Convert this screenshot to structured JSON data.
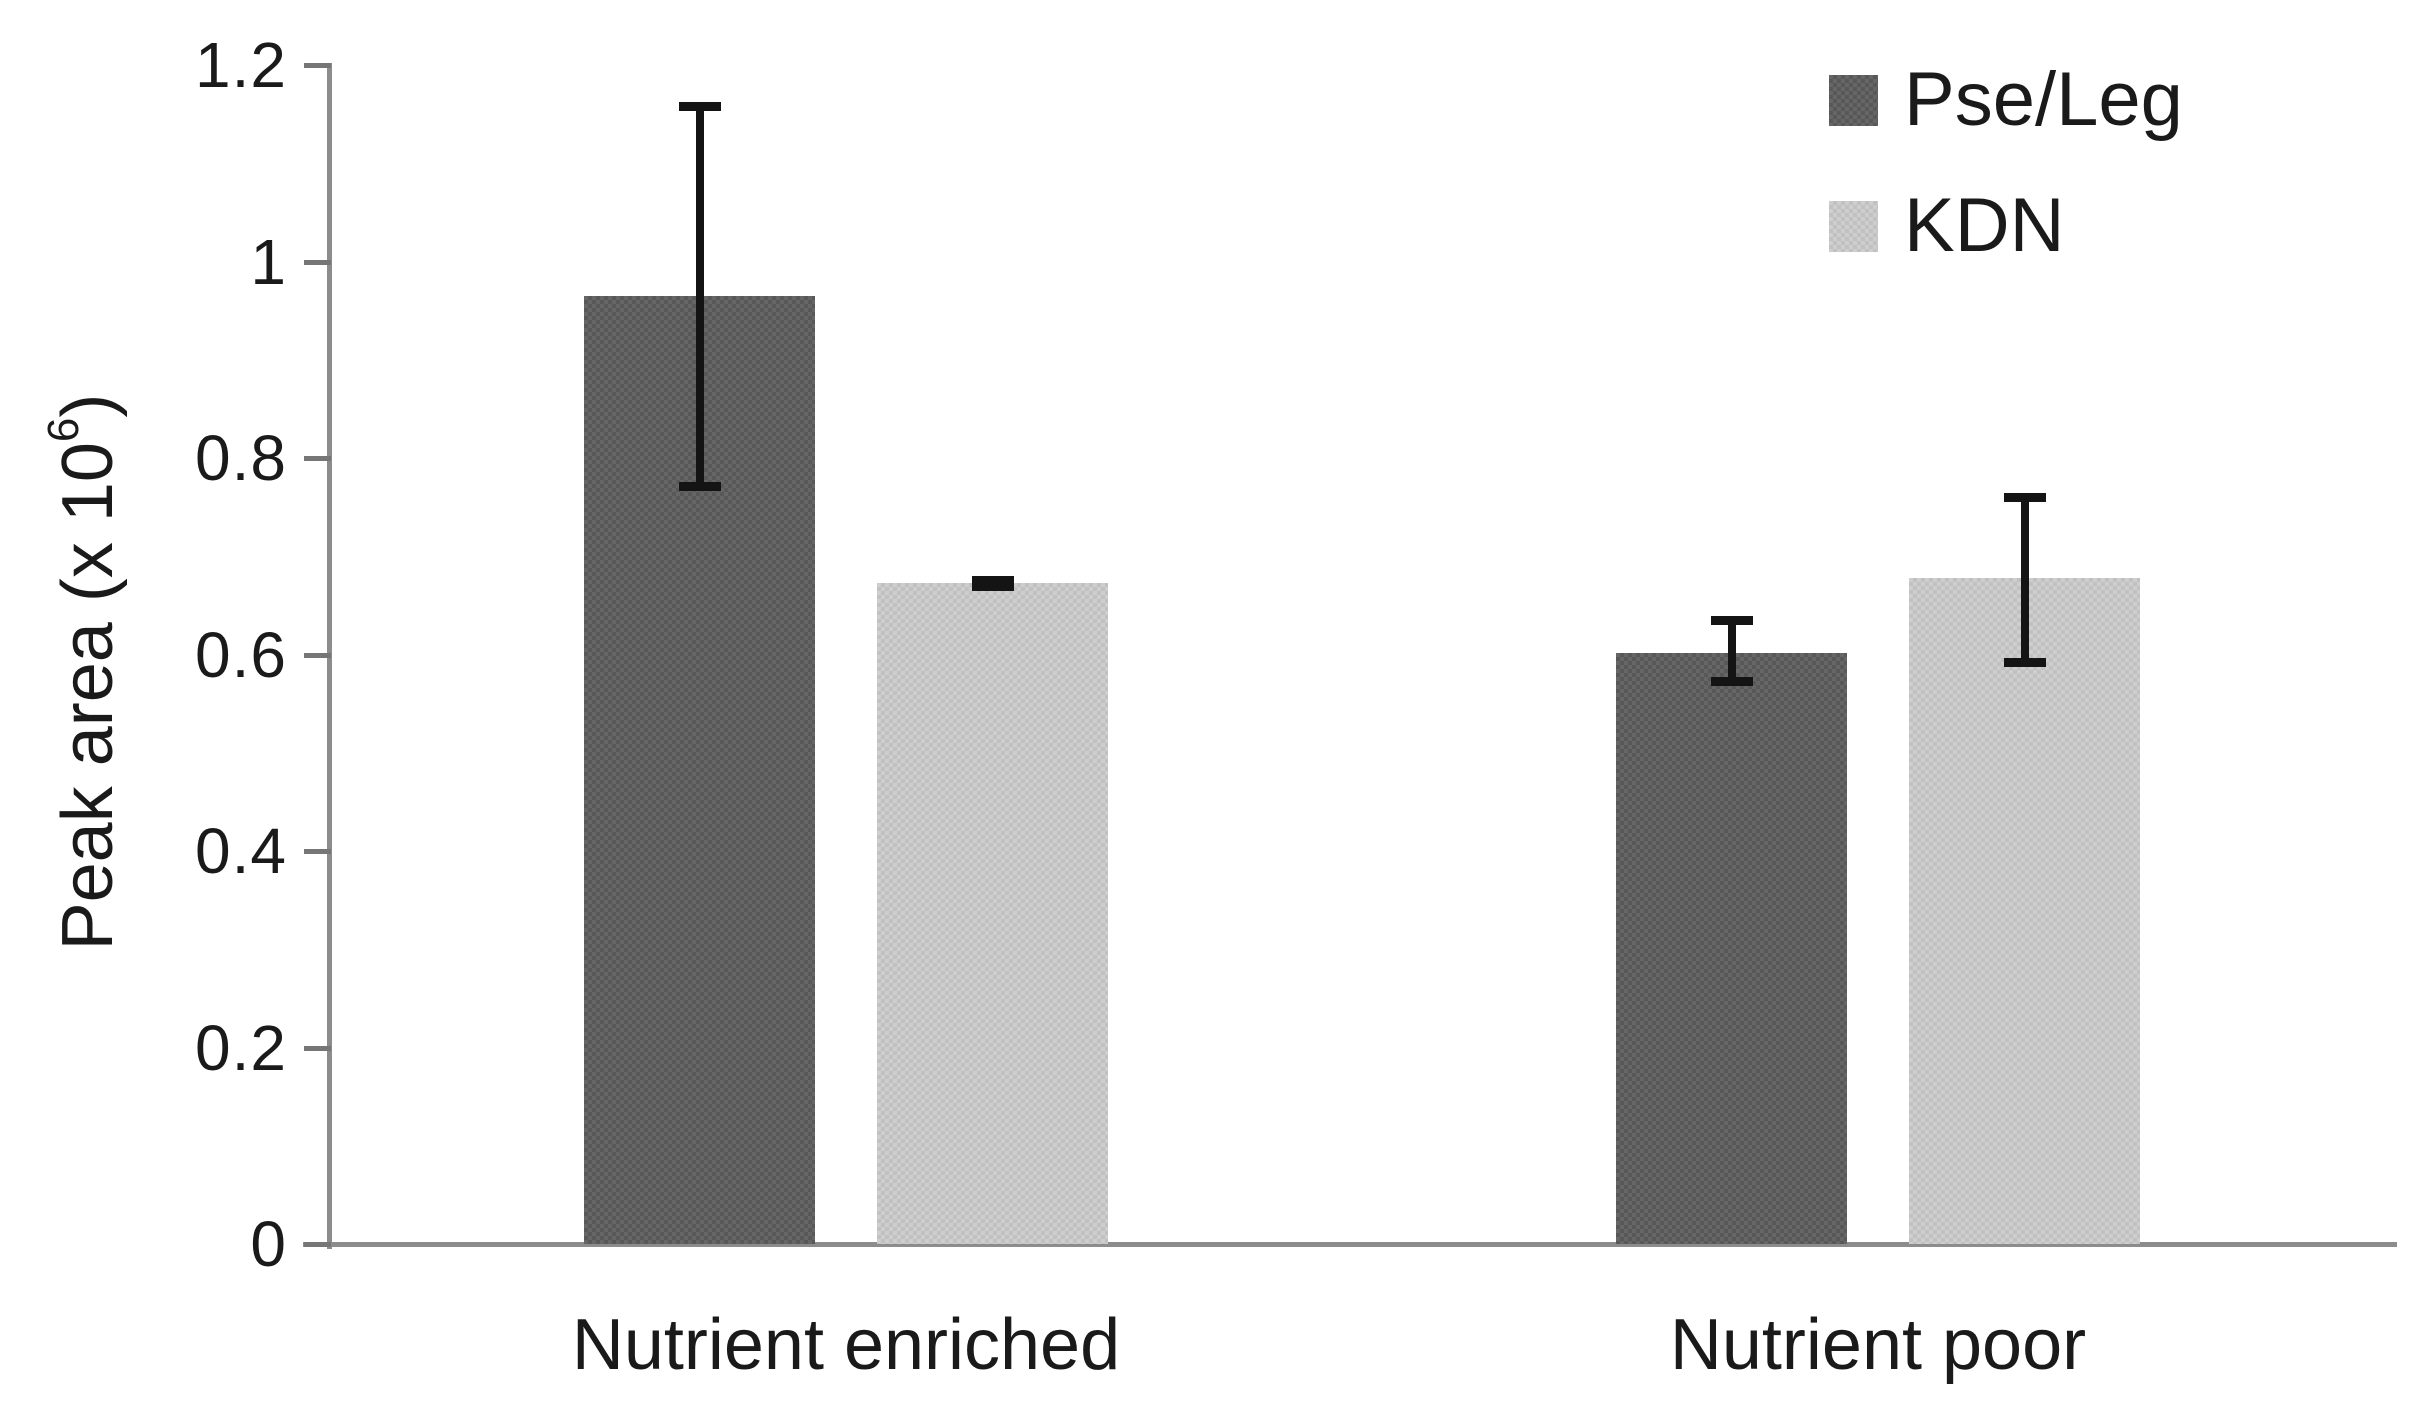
{
  "chart_data": {
    "type": "bar",
    "title": "",
    "categories": [
      "Nutrient enriched",
      "Nutrient poor"
    ],
    "series": [
      {
        "name": "Pse/Leg",
        "color": "#585858",
        "color_alt": "#666666",
        "values": [
          0.965,
          0.602
        ],
        "error_low": [
          0.772,
          0.573
        ],
        "error_high": [
          1.158,
          0.635
        ]
      },
      {
        "name": "KDN",
        "color": "#c1c1c1",
        "color_alt": "#cecece",
        "values": [
          0.673,
          0.678
        ],
        "error_low": [
          0.67,
          0.592
        ],
        "error_high": [
          0.676,
          0.76
        ]
      }
    ],
    "xlabel": "",
    "ylabel": "Peak area (x 10⁶)",
    "ylabel_parts": {
      "base": "Peak area (x 10",
      "exponent": "6",
      "close": ")"
    },
    "ylim": [
      0,
      1.2
    ],
    "ytick_step": 0.2,
    "ytick_labels": [
      "0",
      "0.2",
      "0.4",
      "0.6",
      "0.8",
      "1",
      "1.2"
    ],
    "grid": false,
    "legend_position": "top-right",
    "legend_entries": [
      "Pse/Leg",
      "KDN"
    ],
    "error_bar_color": "#141414",
    "axis_color": "#8c8c8c"
  }
}
